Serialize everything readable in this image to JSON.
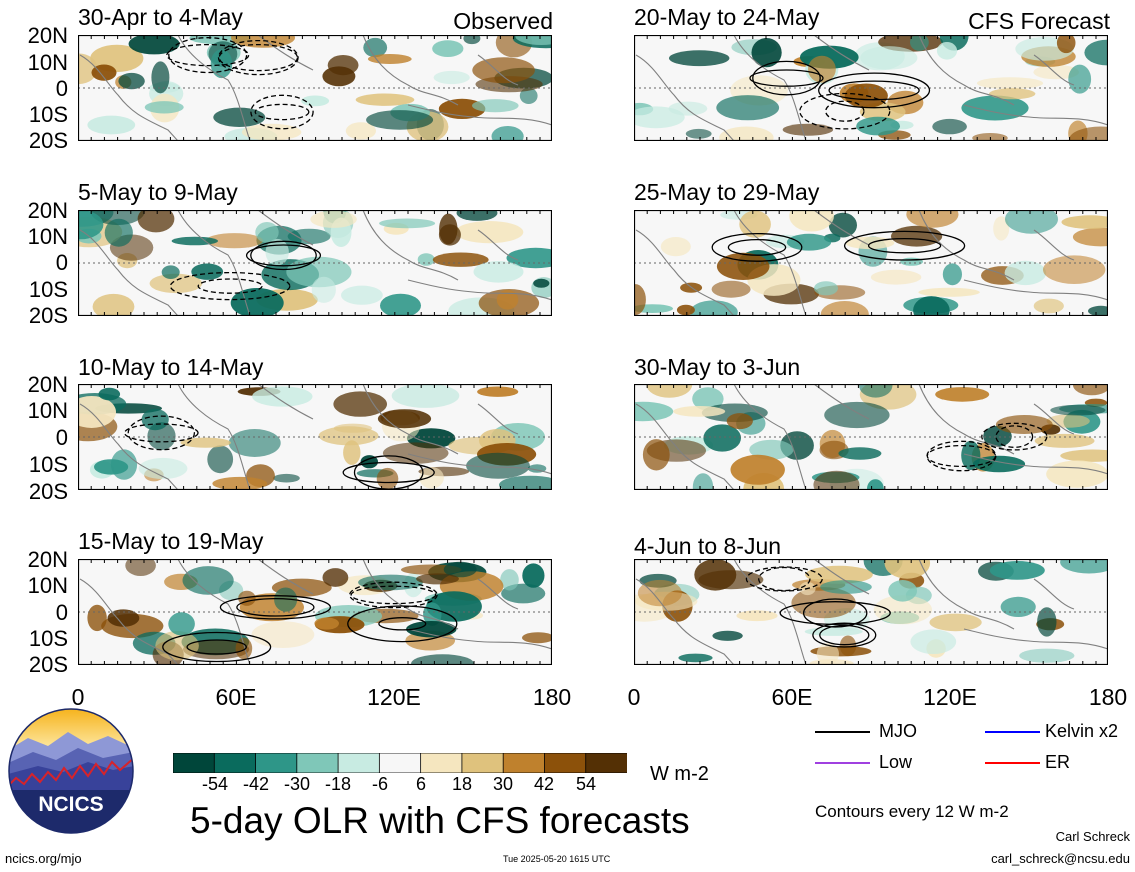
{
  "observed_label": "Observed",
  "forecast_label": "CFS Forecast",
  "panels_left": [
    {
      "title": "30-Apr to 4-May"
    },
    {
      "title": "5-May to 9-May"
    },
    {
      "title": "10-May to 14-May"
    },
    {
      "title": "15-May to 19-May"
    }
  ],
  "panels_right": [
    {
      "title": "20-May to 24-May"
    },
    {
      "title": "25-May to 29-May"
    },
    {
      "title": "30-May to 3-Jun"
    },
    {
      "title": "4-Jun to 8-Jun"
    }
  ],
  "lat_labels": [
    "20N",
    "10N",
    "0",
    "10S",
    "20S"
  ],
  "lon_labels": [
    "0",
    "60E",
    "120E",
    "180"
  ],
  "colorbar": {
    "colors": [
      "#00463a",
      "#0a6b5d",
      "#2e9688",
      "#7fc7b8",
      "#c8ebe2",
      "#f7f7f7",
      "#f5e6bf",
      "#dfc27d",
      "#bf812d",
      "#8c510a",
      "#543005"
    ],
    "labels": [
      "-54",
      "-42",
      "-30",
      "-18",
      "-6",
      "6",
      "18",
      "30",
      "42",
      "54"
    ],
    "units": "W m-2"
  },
  "legend": {
    "mjo": "MJO",
    "mjo_color": "#000000",
    "kelvin": "Kelvin x2",
    "kelvin_color": "#0000ff",
    "low": "Low",
    "low_color": "#a040e0",
    "er": "ER",
    "er_color": "#ff0000",
    "contours": "Contours every 12 W m-2"
  },
  "main_title": "5-day OLR with CFS forecasts",
  "logo_text": "NCICS",
  "footer_left": "ncics.org/mjo",
  "footer_center": "Tue 2025-05-20 1615 UTC",
  "author": "Carl Schreck",
  "email": "carl_schreck@ncsu.edu"
}
